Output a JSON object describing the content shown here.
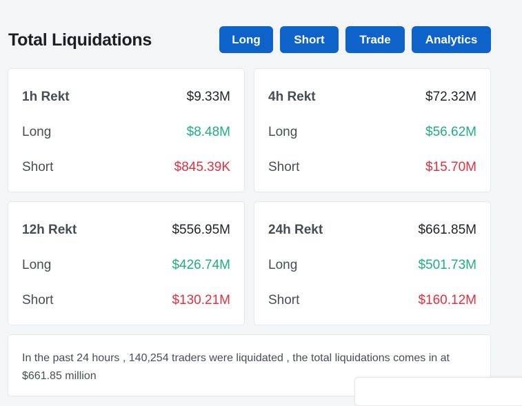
{
  "header": {
    "title": "Total Liquidations",
    "buttons": {
      "long": "Long",
      "short": "Short",
      "trade": "Trade",
      "analytics": "Analytics"
    }
  },
  "cards": [
    {
      "period_label": "1h Rekt",
      "total": "$9.33M",
      "long_label": "Long",
      "long_value": "$8.48M",
      "short_label": "Short",
      "short_value": "$845.39K"
    },
    {
      "period_label": "4h Rekt",
      "total": "$72.32M",
      "long_label": "Long",
      "long_value": "$56.62M",
      "short_label": "Short",
      "short_value": "$15.70M"
    },
    {
      "period_label": "12h Rekt",
      "total": "$556.95M",
      "long_label": "Long",
      "long_value": "$426.74M",
      "short_label": "Short",
      "short_value": "$130.21M"
    },
    {
      "period_label": "24h Rekt",
      "total": "$661.85M",
      "long_label": "Long",
      "long_value": "$501.73M",
      "short_label": "Short",
      "short_value": "$160.12M"
    }
  ],
  "summary": {
    "text": "In the past 24 hours , 140,254 traders were liquidated , the total liquidations comes in at $661.85 million"
  },
  "colors": {
    "button_bg": "#0d63c9",
    "long_value": "#21ad84",
    "short_value": "#e0303f"
  }
}
